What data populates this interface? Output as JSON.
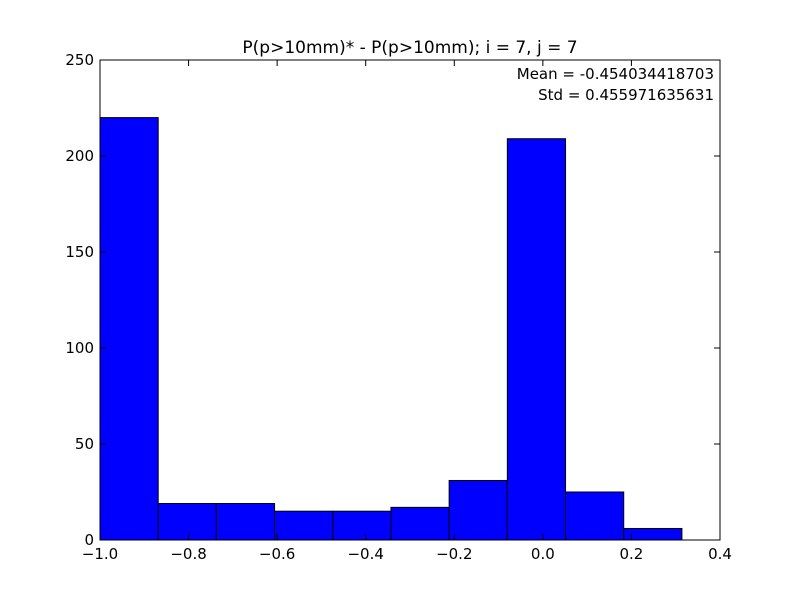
{
  "chart_data": {
    "type": "bar",
    "title": "P(p>10mm)* - P(p>10mm); i = 7, j = 7",
    "xlabel": "",
    "ylabel": "",
    "xlim": [
      -1.0,
      0.4
    ],
    "ylim": [
      0,
      250
    ],
    "xticks": [
      -1.0,
      -0.8,
      -0.6,
      -0.4,
      -0.2,
      0.0,
      0.2,
      0.4
    ],
    "xtick_labels": [
      "−1.0",
      "−0.8",
      "−0.6",
      "−0.4",
      "−0.2",
      "0.0",
      "0.2",
      "0.4"
    ],
    "yticks": [
      0,
      50,
      100,
      150,
      200,
      250
    ],
    "ytick_labels": [
      "0",
      "50",
      "100",
      "150",
      "200",
      "250"
    ],
    "bin_edges": [
      -1.0,
      -0.8686,
      -0.7372,
      -0.6058,
      -0.4744,
      -0.343,
      -0.2116,
      -0.0802,
      0.0512,
      0.1826,
      0.314
    ],
    "values": [
      220,
      19,
      19,
      15,
      15,
      17,
      31,
      209,
      25,
      6
    ],
    "bar_color": "#0000ff",
    "grid": false,
    "annotations": [
      "Mean = -0.454034418703",
      "Std = 0.455971635631"
    ]
  }
}
